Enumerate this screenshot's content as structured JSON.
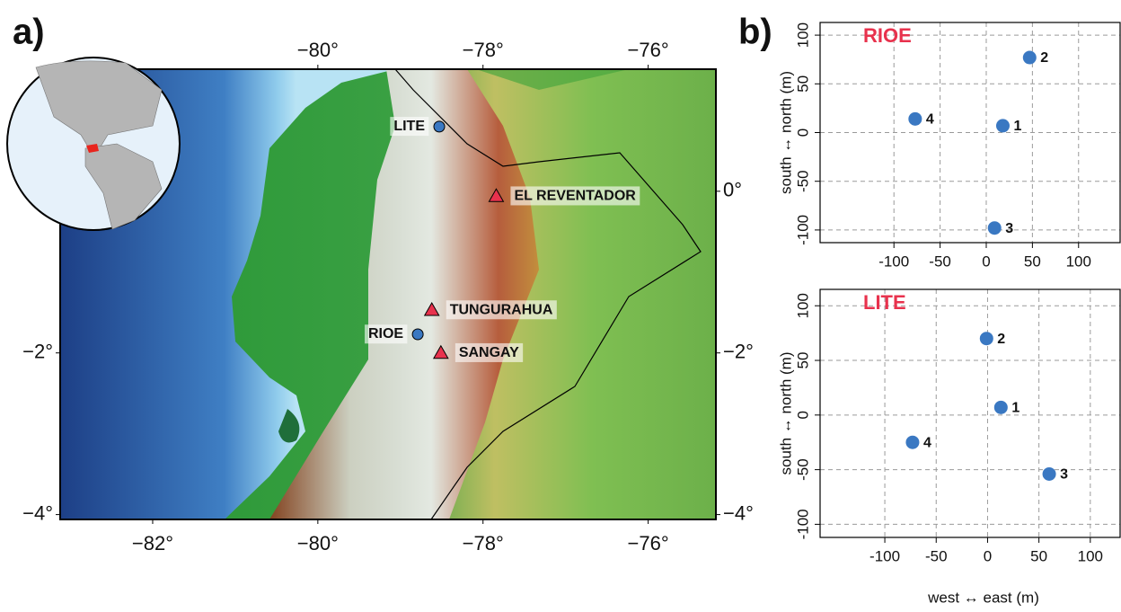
{
  "panel_labels": [
    "a)",
    "b)"
  ],
  "map": {
    "lonlim": [
      -83.12,
      -75.18
    ],
    "latlim": [
      -4.06,
      1.51
    ],
    "top_ticks": [
      {
        "value": -80,
        "label": "−80°"
      },
      {
        "value": -78,
        "label": "−78°"
      },
      {
        "value": -76,
        "label": "−76°"
      }
    ],
    "bottom_ticks": [
      {
        "value": -82,
        "label": "−82°"
      },
      {
        "value": -80,
        "label": "−80°"
      },
      {
        "value": -78,
        "label": "−78°"
      },
      {
        "value": -76,
        "label": "−76°"
      }
    ],
    "left_ticks": [
      {
        "value": -2,
        "label": "−2°"
      },
      {
        "value": -4,
        "label": "−4°"
      }
    ],
    "right_ticks": [
      {
        "value": 0,
        "label": "0°"
      },
      {
        "value": -2,
        "label": "−2°"
      },
      {
        "value": -4,
        "label": "−4°"
      }
    ],
    "stations": {
      "color": "#3a78c2",
      "names": [
        "LITE",
        "RIOE"
      ],
      "lon": [
        -78.53,
        -78.79
      ],
      "lat": [
        0.8,
        -1.77
      ]
    },
    "volcanoes": {
      "color": "#e8324d",
      "names": [
        "EL REVENTADOR",
        "TUNGURAHUA",
        "SANGAY"
      ],
      "lon": [
        -77.84,
        -78.62,
        -78.51
      ],
      "lat": [
        -0.06,
        -1.47,
        -2.0
      ]
    }
  },
  "chart_data": [
    {
      "type": "scatter",
      "title": "RIOE",
      "title_color": "#e8324d",
      "ylabel": "south ↔ north (m)",
      "point_labels": [
        "1",
        "2",
        "3",
        "4"
      ],
      "x": [
        18,
        47,
        9,
        -77
      ],
      "y": [
        7,
        77,
        -98,
        14
      ],
      "color": "#3a78c2",
      "xlim": [
        -180,
        145
      ],
      "ylim": [
        -113,
        113
      ],
      "xticks": [
        -100,
        -50,
        0,
        50,
        100
      ],
      "yticks": [
        -100,
        -50,
        0,
        50,
        100
      ],
      "grid": true
    },
    {
      "type": "scatter",
      "title": "LITE",
      "title_color": "#e8324d",
      "ylabel": "south ↔ north (m)",
      "xlabel": "west ↔ east (m)",
      "point_labels": [
        "1",
        "2",
        "3",
        "4"
      ],
      "x": [
        13,
        -1,
        60,
        -73
      ],
      "y": [
        7,
        70,
        -54,
        -25
      ],
      "color": "#3a78c2",
      "xlim": [
        -163,
        129
      ],
      "ylim": [
        -112,
        115
      ],
      "xticks": [
        -100,
        -50,
        0,
        50,
        100
      ],
      "yticks": [
        -100,
        -50,
        0,
        50,
        100
      ],
      "grid": true
    }
  ]
}
